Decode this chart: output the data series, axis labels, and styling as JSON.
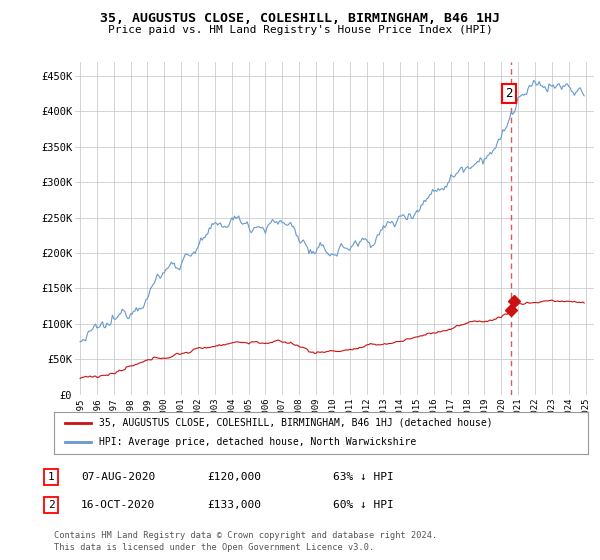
{
  "title": "35, AUGUSTUS CLOSE, COLESHILL, BIRMINGHAM, B46 1HJ",
  "subtitle": "Price paid vs. HM Land Registry's House Price Index (HPI)",
  "ylabel_ticks": [
    "£0",
    "£50K",
    "£100K",
    "£150K",
    "£200K",
    "£250K",
    "£300K",
    "£350K",
    "£400K",
    "£450K"
  ],
  "ytick_values": [
    0,
    50000,
    100000,
    150000,
    200000,
    250000,
    300000,
    350000,
    400000,
    450000
  ],
  "ylim": [
    0,
    470000
  ],
  "xlim_start": 1994.7,
  "xlim_end": 2025.5,
  "hpi_color": "#6699cc",
  "property_color": "#cc1111",
  "transaction1": {
    "date_num": 2020.58,
    "price": 120000,
    "label": "1"
  },
  "transaction2": {
    "date_num": 2020.79,
    "price": 133000,
    "label": "2"
  },
  "legend_property": "35, AUGUSTUS CLOSE, COLESHILL, BIRMINGHAM, B46 1HJ (detached house)",
  "legend_hpi": "HPI: Average price, detached house, North Warwickshire",
  "table_rows": [
    {
      "num": "1",
      "date": "07-AUG-2020",
      "price": "£120,000",
      "pct": "63% ↓ HPI"
    },
    {
      "num": "2",
      "date": "16-OCT-2020",
      "price": "£133,000",
      "pct": "60% ↓ HPI"
    }
  ],
  "footnote": "Contains HM Land Registry data © Crown copyright and database right 2024.\nThis data is licensed under the Open Government Licence v3.0.",
  "background_color": "#ffffff",
  "grid_color": "#cccccc"
}
